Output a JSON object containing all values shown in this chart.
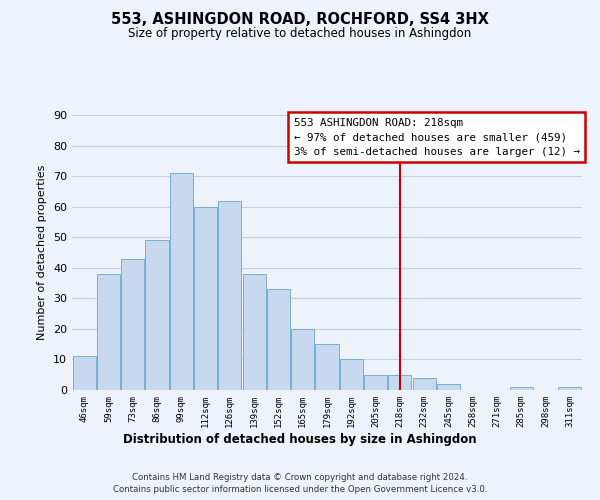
{
  "title": "553, ASHINGDON ROAD, ROCHFORD, SS4 3HX",
  "subtitle": "Size of property relative to detached houses in Ashingdon",
  "xlabel": "Distribution of detached houses by size in Ashingdon",
  "ylabel": "Number of detached properties",
  "bar_labels": [
    "46sqm",
    "59sqm",
    "73sqm",
    "86sqm",
    "99sqm",
    "112sqm",
    "126sqm",
    "139sqm",
    "152sqm",
    "165sqm",
    "179sqm",
    "192sqm",
    "205sqm",
    "218sqm",
    "232sqm",
    "245sqm",
    "258sqm",
    "271sqm",
    "285sqm",
    "298sqm",
    "311sqm"
  ],
  "bar_values": [
    11,
    38,
    43,
    49,
    71,
    60,
    62,
    38,
    33,
    20,
    15,
    10,
    5,
    5,
    4,
    2,
    0,
    0,
    1,
    0,
    1
  ],
  "bar_color": "#c8d8ef",
  "bar_edge_color": "#7aaed6",
  "marker_index": 13,
  "marker_color": "#cc0000",
  "ylim": [
    0,
    90
  ],
  "yticks": [
    0,
    10,
    20,
    30,
    40,
    50,
    60,
    70,
    80,
    90
  ],
  "annotation_title": "553 ASHINGDON ROAD: 218sqm",
  "annotation_line1": "← 97% of detached houses are smaller (459)",
  "annotation_line2": "3% of semi-detached houses are larger (12) →",
  "footer_line1": "Contains HM Land Registry data © Crown copyright and database right 2024.",
  "footer_line2": "Contains public sector information licensed under the Open Government Licence v3.0.",
  "background_color": "#edf2fb",
  "grid_color": "#c8d0e0",
  "ann_box_bg": "#ffffff",
  "ann_box_edge": "#cc0000"
}
